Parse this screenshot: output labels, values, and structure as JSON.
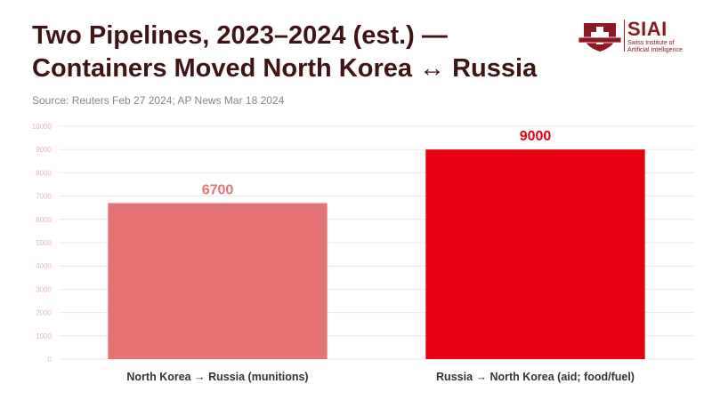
{
  "header": {
    "title_line1": "Two Pipelines, 2023–2024 (est.) —",
    "title_line2": "Containers Moved North Korea ↔ Russia",
    "source": "Source: Reuters Feb 27 2024; AP News Mar 18 2024"
  },
  "logo": {
    "name": "SIAI",
    "subtitle_line1": "Swiss Institute of",
    "subtitle_line2": "Artificial Intelligence",
    "icon": "swiss-shield-icon",
    "color": "#8b1a22"
  },
  "chart_data": {
    "type": "bar",
    "categories": [
      "North Korea → Russia (munitions)",
      "Russia → North Korea (aid; food/fuel)"
    ],
    "values": [
      6700,
      9000
    ],
    "data_labels": [
      "6700",
      "9000"
    ],
    "colors": [
      "#e57373",
      "#e60012"
    ],
    "ylim": [
      0,
      10000
    ],
    "yticks": [
      0,
      1000,
      2000,
      3000,
      4000,
      5000,
      6000,
      7000,
      8000,
      9000,
      10000
    ],
    "grid": true
  }
}
